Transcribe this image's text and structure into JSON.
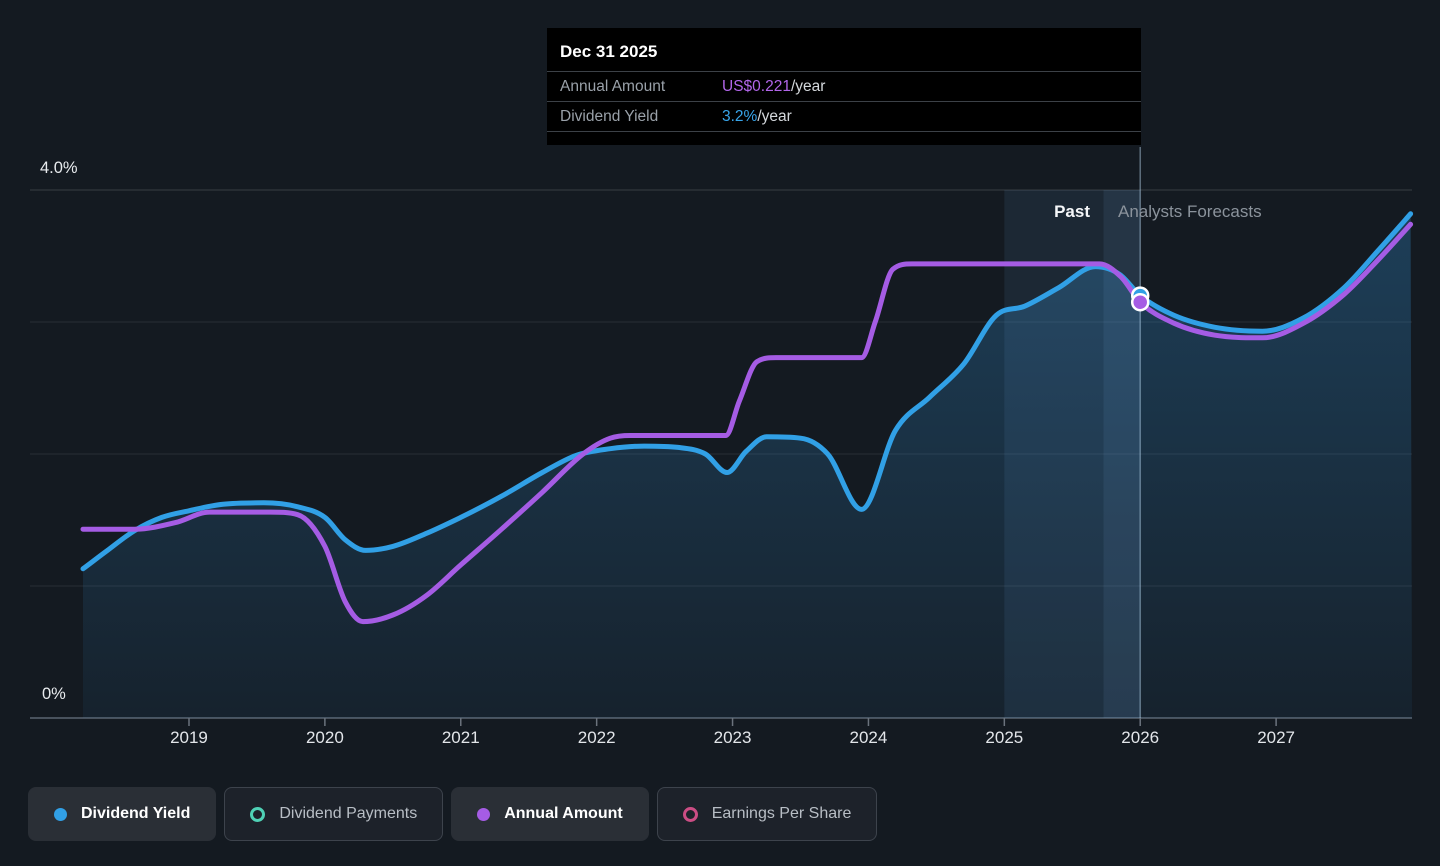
{
  "colors": {
    "background": "#141a21",
    "dividend_yield_blue": "#31a0e6",
    "annual_amount_purple": "#a55ce4",
    "dividend_payments_teal": "#4fd1b5",
    "earnings_per_share_pink": "#cb4d84",
    "tooltip_value_purple": "#b266ea",
    "tooltip_value_blue": "#38a5ea"
  },
  "tooltip": {
    "date": "Dec 31 2025",
    "rows": [
      {
        "label": "Annual Amount",
        "value": "US$0.221",
        "suffix": "/year",
        "value_color": "#b266ea"
      },
      {
        "label": "Dividend Yield",
        "value": "3.2%",
        "suffix": "/year",
        "value_color": "#38a5ea"
      }
    ]
  },
  "annotations": {
    "past_label": "Past",
    "forecast_label": "Analysts Forecasts"
  },
  "legend": {
    "items": [
      {
        "label": "Dividend Yield",
        "marker": "dot",
        "color": "#31a0e6",
        "active": true
      },
      {
        "label": "Dividend Payments",
        "marker": "ring",
        "color": "#4fd1b5",
        "active": false
      },
      {
        "label": "Annual Amount",
        "marker": "dot",
        "color": "#a55ce4",
        "active": true
      },
      {
        "label": "Earnings Per Share",
        "marker": "ring",
        "color": "#cb4d84",
        "active": false
      }
    ]
  },
  "chart_data": {
    "type": "area",
    "xlim": [
      2018.22,
      2028.0
    ],
    "ylim": [
      0,
      4.0
    ],
    "y_ticks": [
      {
        "value": 4.0,
        "label": "4.0%"
      },
      {
        "value": 0,
        "label": "0%"
      }
    ],
    "x_ticks": [
      2019,
      2020,
      2021,
      2022,
      2023,
      2024,
      2025,
      2026,
      2027
    ],
    "past_until": 2026.0,
    "highlight_period": {
      "from": 2025.0,
      "to": 2026.0,
      "inner_from": 2025.73
    },
    "series": [
      {
        "name": "Dividend Yield",
        "color": "#31a0e6",
        "fill": true,
        "points": [
          [
            2018.22,
            1.13
          ],
          [
            2018.4,
            1.27
          ],
          [
            2018.6,
            1.42
          ],
          [
            2018.8,
            1.52
          ],
          [
            2019.0,
            1.57
          ],
          [
            2019.25,
            1.62
          ],
          [
            2019.55,
            1.63
          ],
          [
            2019.8,
            1.6
          ],
          [
            2020.0,
            1.52
          ],
          [
            2020.15,
            1.35
          ],
          [
            2020.3,
            1.27
          ],
          [
            2020.5,
            1.3
          ],
          [
            2020.75,
            1.4
          ],
          [
            2021.0,
            1.52
          ],
          [
            2021.3,
            1.68
          ],
          [
            2021.6,
            1.86
          ],
          [
            2021.85,
            1.99
          ],
          [
            2022.1,
            2.04
          ],
          [
            2022.35,
            2.06
          ],
          [
            2022.6,
            2.05
          ],
          [
            2022.8,
            2.0
          ],
          [
            2022.96,
            1.86
          ],
          [
            2023.1,
            2.02
          ],
          [
            2023.25,
            2.13
          ],
          [
            2023.5,
            2.12
          ],
          [
            2023.7,
            2.0
          ],
          [
            2023.95,
            1.58
          ],
          [
            2024.2,
            2.18
          ],
          [
            2024.45,
            2.43
          ],
          [
            2024.7,
            2.68
          ],
          [
            2024.94,
            3.05
          ],
          [
            2025.15,
            3.12
          ],
          [
            2025.4,
            3.26
          ],
          [
            2025.67,
            3.42
          ],
          [
            2025.85,
            3.36
          ],
          [
            2026.0,
            3.2
          ],
          [
            2026.25,
            3.05
          ],
          [
            2026.55,
            2.96
          ],
          [
            2026.9,
            2.93
          ],
          [
            2027.2,
            3.03
          ],
          [
            2027.5,
            3.26
          ],
          [
            2027.75,
            3.54
          ],
          [
            2027.99,
            3.82
          ]
        ]
      },
      {
        "name": "Annual Amount",
        "color": "#a55ce4",
        "fill": false,
        "points": [
          [
            2018.22,
            1.43
          ],
          [
            2018.6,
            1.43
          ],
          [
            2018.9,
            1.48
          ],
          [
            2019.15,
            1.56
          ],
          [
            2019.6,
            1.56
          ],
          [
            2019.8,
            1.54
          ],
          [
            2020.0,
            1.3
          ],
          [
            2020.15,
            0.88
          ],
          [
            2020.28,
            0.73
          ],
          [
            2020.5,
            0.78
          ],
          [
            2020.75,
            0.93
          ],
          [
            2021.0,
            1.16
          ],
          [
            2021.3,
            1.43
          ],
          [
            2021.6,
            1.71
          ],
          [
            2021.9,
            2.0
          ],
          [
            2022.1,
            2.12
          ],
          [
            2022.25,
            2.14
          ],
          [
            2022.95,
            2.14
          ],
          [
            2023.05,
            2.4
          ],
          [
            2023.18,
            2.7
          ],
          [
            2023.32,
            2.73
          ],
          [
            2023.95,
            2.73
          ],
          [
            2024.05,
            3.0
          ],
          [
            2024.18,
            3.4
          ],
          [
            2024.32,
            3.44
          ],
          [
            2025.7,
            3.44
          ],
          [
            2025.86,
            3.34
          ],
          [
            2026.0,
            3.15
          ],
          [
            2026.25,
            2.99
          ],
          [
            2026.55,
            2.9
          ],
          [
            2026.9,
            2.88
          ],
          [
            2027.2,
            2.99
          ],
          [
            2027.5,
            3.21
          ],
          [
            2027.75,
            3.47
          ],
          [
            2027.99,
            3.74
          ]
        ]
      }
    ],
    "markers": [
      {
        "series": "Dividend Yield",
        "x": 2026.0,
        "y": 3.2,
        "color": "#31a0e6"
      },
      {
        "series": "Annual Amount",
        "x": 2026.0,
        "y": 3.15,
        "color": "#a55ce4"
      }
    ]
  }
}
